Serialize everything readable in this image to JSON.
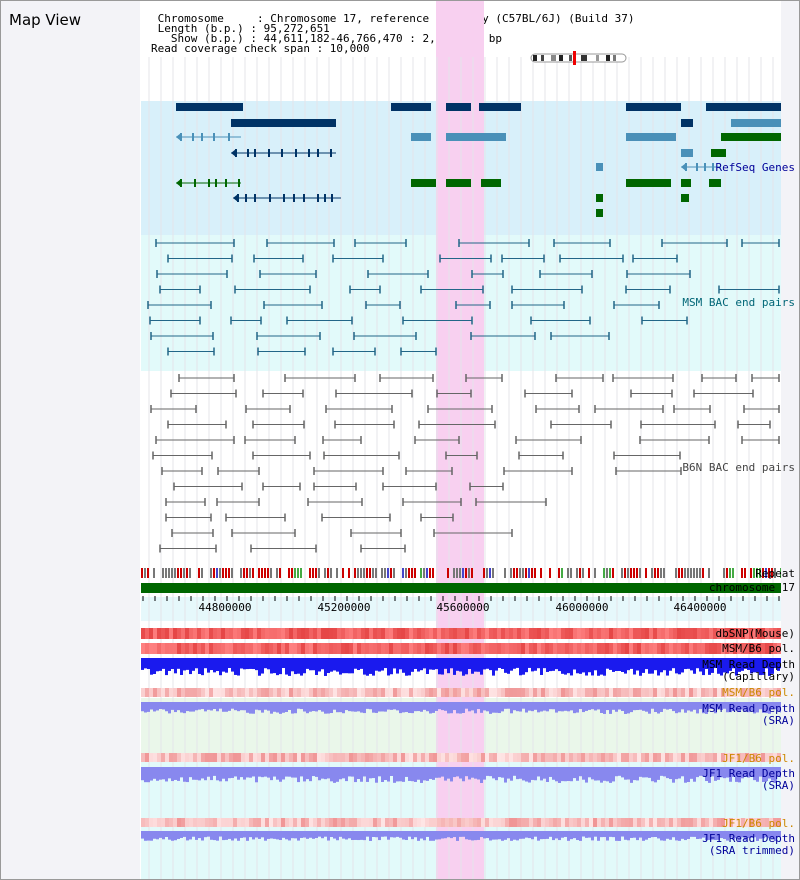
{
  "view_title": "Map View",
  "header": {
    "chromosome_line": " Chromosome     : Chromosome 17, reference assembly (C57BL/6J) (Build 37)",
    "length_line": " Length (b.p.) : 95,272,651",
    "show_line": "   Show (b.p.) : 44,611,182-46,766,470 : 2,155,289 bp",
    "coverage_line": "Read coverage check span : 10,000"
  },
  "tracks": {
    "refseq": "RefSeq Genes",
    "msm_bac": "MSM BAC end pairs",
    "b6n_bac": "B6N BAC end pairs",
    "repeat": "Repeat",
    "chromosome": "chromosome 17",
    "dbsnp": "dbSNP(Mouse)",
    "msm_b6_pol": "MSM/B6 pol.",
    "msm_depth_cap": "MSM Read Depth\n(Capillary)",
    "msm_b6_pol2": "MSM/B6 pol.",
    "msm_depth_sra": "MSM Read Depth\n(SRA)",
    "jf1_b6_pol": "JF1/B6 pol.",
    "jf1_depth_sra": "JF1 Read Depth\n(SRA)",
    "jf1_b6_pol2": "JF1/B6 pol.",
    "jf1_depth_trim": "JF1 Read Depth\n(SRA trimmed)"
  },
  "axis_ticks": [
    "44800000",
    "45200000",
    "45600000",
    "46000000",
    "46400000"
  ],
  "colors": {
    "highlight": "#f8d0f0",
    "refseq_bg": "#d8f0fa",
    "msm_bg": "#e2fafa",
    "gene_dark": "#003366",
    "gene_mid": "#4a90b8",
    "gene_green": "#006600",
    "depth_blue": "#1a1aee",
    "depth_lav": "#8888ee",
    "chrom_green": "#006600"
  }
}
